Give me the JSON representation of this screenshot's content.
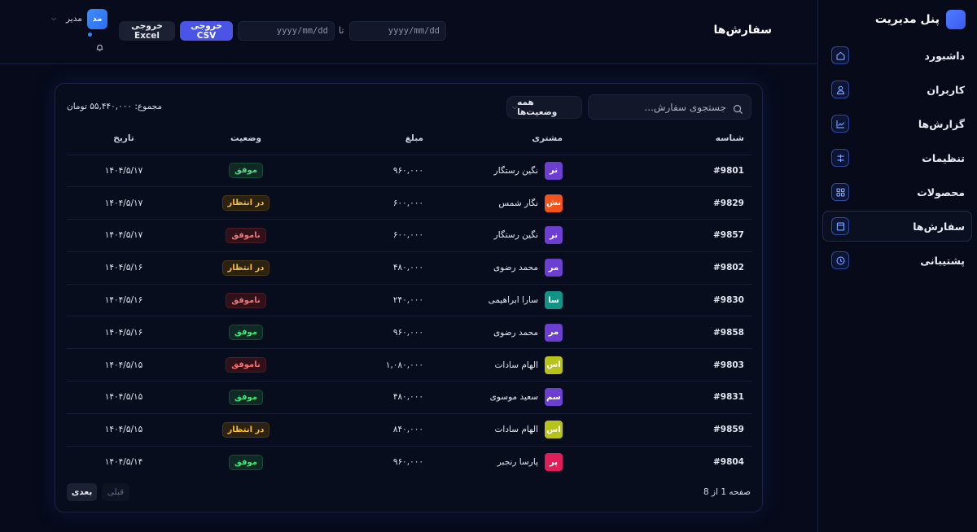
{
  "sidebar": {
    "brand_title": "پنل مدیریت",
    "items": [
      {
        "label": "داشبورد",
        "icon": "home-icon",
        "active": false
      },
      {
        "label": "کاربران",
        "icon": "user-icon",
        "active": false
      },
      {
        "label": "گزارش‌ها",
        "icon": "chart-icon",
        "active": false
      },
      {
        "label": "تنظیمات",
        "icon": "sliders-icon",
        "active": false
      },
      {
        "label": "محصولات",
        "icon": "grid-icon",
        "active": false
      },
      {
        "label": "سفارش‌ها",
        "icon": "bag-icon",
        "active": true
      },
      {
        "label": "پشتیبانی",
        "icon": "clock-icon",
        "active": false
      }
    ]
  },
  "header": {
    "title": "سفارش‌ها",
    "date_from_placeholder": "yyyy/mm/dd",
    "date_to_placeholder": "yyyy/mm/dd",
    "date_separator": "تا",
    "csv_label": "خروجی CSV",
    "excel_label": "خروجی Excel",
    "user_initials": "مد",
    "user_name": "مدیر"
  },
  "toolbar": {
    "search_placeholder": "جستجوی سفارش...",
    "status_filter": "همه وضعیت‌ها",
    "total_text": "مجموع: ۵۵,۴۴۰,۰۰۰ تومان"
  },
  "table": {
    "headers": {
      "id": "شناسه",
      "customer": "مشتری",
      "amount": "مبلغ",
      "status": "وضعیت",
      "date": "تاریخ"
    },
    "rows": [
      {
        "id": "#9801",
        "initials": "نر",
        "customer": "نگین رستگار",
        "avatar_color": "#6d3fd0",
        "amount": "۹۶۰,۰۰۰",
        "status": "موفق",
        "status_type": "success",
        "date": "۱۴۰۴/۵/۱۷"
      },
      {
        "id": "#9829",
        "initials": "نش",
        "customer": "نگار شمس",
        "avatar_color": "#f0531c",
        "amount": "۶۰۰,۰۰۰",
        "status": "در انتظار",
        "status_type": "pending",
        "date": "۱۴۰۴/۵/۱۷"
      },
      {
        "id": "#9857",
        "initials": "نر",
        "customer": "نگین رستگار",
        "avatar_color": "#6d3fd0",
        "amount": "۶۰۰,۰۰۰",
        "status": "ناموفق",
        "status_type": "failed",
        "date": "۱۴۰۴/۵/۱۷"
      },
      {
        "id": "#9802",
        "initials": "مر",
        "customer": "محمد رضوی",
        "avatar_color": "#6d3fd0",
        "amount": "۴۸۰,۰۰۰",
        "status": "در انتظار",
        "status_type": "pending",
        "date": "۱۴۰۴/۵/۱۶"
      },
      {
        "id": "#9830",
        "initials": "سا",
        "customer": "سارا ابراهیمی",
        "avatar_color": "#119485",
        "amount": "۲۴۰,۰۰۰",
        "status": "ناموفق",
        "status_type": "failed",
        "date": "۱۴۰۴/۵/۱۶"
      },
      {
        "id": "#9858",
        "initials": "مر",
        "customer": "محمد رضوی",
        "avatar_color": "#6d3fd0",
        "amount": "۹۶۰,۰۰۰",
        "status": "موفق",
        "status_type": "success",
        "date": "۱۴۰۴/۵/۱۶"
      },
      {
        "id": "#9803",
        "initials": "اس",
        "customer": "الهام سادات",
        "avatar_color": "#b7c21a",
        "amount": "۱,۰۸۰,۰۰۰",
        "status": "ناموفق",
        "status_type": "failed",
        "date": "۱۴۰۴/۵/۱۵"
      },
      {
        "id": "#9831",
        "initials": "سم",
        "customer": "سعید موسوی",
        "avatar_color": "#6d3fd0",
        "amount": "۴۸۰,۰۰۰",
        "status": "موفق",
        "status_type": "success",
        "date": "۱۴۰۴/۵/۱۵"
      },
      {
        "id": "#9859",
        "initials": "اس",
        "customer": "الهام سادات",
        "avatar_color": "#b7c21a",
        "amount": "۸۴۰,۰۰۰",
        "status": "در انتظار",
        "status_type": "pending",
        "date": "۱۴۰۴/۵/۱۵"
      },
      {
        "id": "#9804",
        "initials": "پر",
        "customer": "پارسا رنجبر",
        "avatar_color": "#e11d5a",
        "amount": "۹۶۰,۰۰۰",
        "status": "موفق",
        "status_type": "success",
        "date": "۱۴۰۴/۵/۱۴"
      }
    ]
  },
  "pagination": {
    "info": "صفحه 1 از 8",
    "prev_label": "قبلی",
    "next_label": "بعدی"
  }
}
